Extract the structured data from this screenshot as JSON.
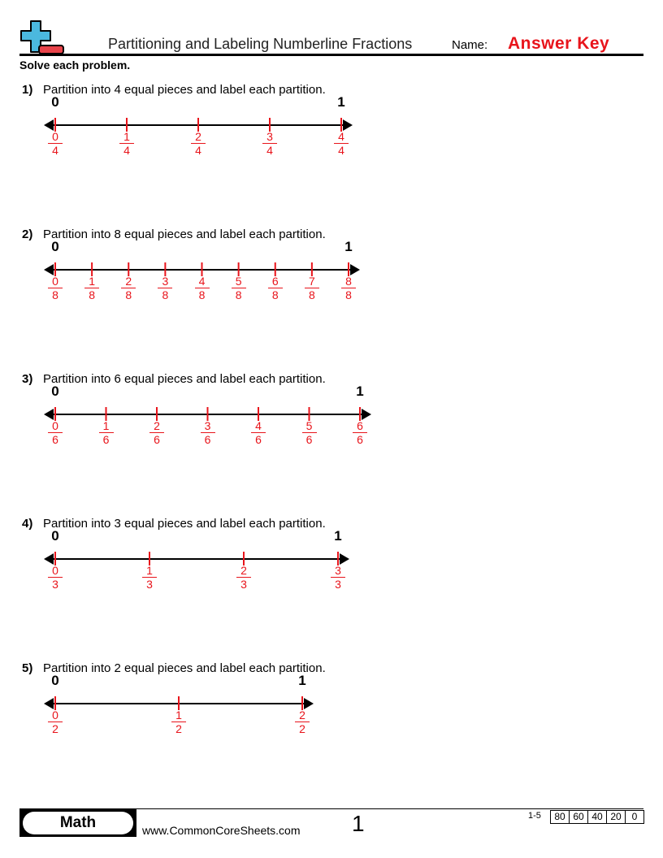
{
  "header": {
    "logo_icon": "plus-minus-logo-icon",
    "title": "Partitioning and Labeling Numberline Fractions",
    "name_label": "Name:",
    "name_value": "Answer Key",
    "instructions": "Solve each problem."
  },
  "colors": {
    "answer": "#e8141b",
    "logo_blue": "#4bb8de",
    "logo_red": "#e8434a"
  },
  "problems": [
    {
      "number": "1)",
      "text": "Partition into 4 equal pieces and label each partition.",
      "start": "0",
      "end": "1",
      "pieces": 4,
      "fractions": [
        [
          "0",
          "4"
        ],
        [
          "1",
          "4"
        ],
        [
          "2",
          "4"
        ],
        [
          "3",
          "4"
        ],
        [
          "4",
          "4"
        ]
      ]
    },
    {
      "number": "2)",
      "text": "Partition into 8 equal pieces and label each partition.",
      "start": "0",
      "end": "1",
      "pieces": 8,
      "fractions": [
        [
          "0",
          "8"
        ],
        [
          "1",
          "8"
        ],
        [
          "2",
          "8"
        ],
        [
          "3",
          "8"
        ],
        [
          "4",
          "8"
        ],
        [
          "5",
          "8"
        ],
        [
          "6",
          "8"
        ],
        [
          "7",
          "8"
        ],
        [
          "8",
          "8"
        ]
      ]
    },
    {
      "number": "3)",
      "text": "Partition into 6 equal pieces and label each partition.",
      "start": "0",
      "end": "1",
      "pieces": 6,
      "fractions": [
        [
          "0",
          "6"
        ],
        [
          "1",
          "6"
        ],
        [
          "2",
          "6"
        ],
        [
          "3",
          "6"
        ],
        [
          "4",
          "6"
        ],
        [
          "5",
          "6"
        ],
        [
          "6",
          "6"
        ]
      ]
    },
    {
      "number": "4)",
      "text": "Partition into 3 equal pieces and label each partition.",
      "start": "0",
      "end": "1",
      "pieces": 3,
      "fractions": [
        [
          "0",
          "3"
        ],
        [
          "1",
          "3"
        ],
        [
          "2",
          "3"
        ],
        [
          "3",
          "3"
        ]
      ]
    },
    {
      "number": "5)",
      "text": "Partition into 2 equal pieces and label each partition.",
      "start": "0",
      "end": "1",
      "pieces": 2,
      "fractions": [
        [
          "0",
          "2"
        ],
        [
          "1",
          "2"
        ],
        [
          "2",
          "2"
        ]
      ]
    }
  ],
  "footer": {
    "subject": "Math",
    "site": "www.CommonCoreSheets.com",
    "page": "1",
    "range": "1-5",
    "scores": [
      "80",
      "60",
      "40",
      "20",
      "0"
    ]
  }
}
